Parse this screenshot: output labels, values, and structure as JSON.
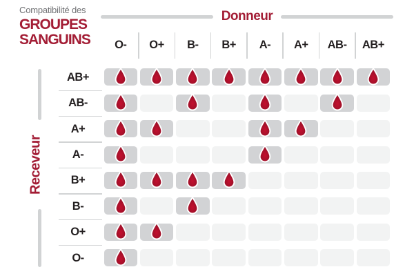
{
  "title": {
    "eyebrow": "Compatibilité des",
    "line1": "GROUPES",
    "line2": "SANGUINS"
  },
  "axes": {
    "donor_label": "Donneur",
    "receiver_label": "Receveur"
  },
  "icons": {
    "compatible_marker": "blood-drop-icon"
  },
  "colors": {
    "accent_red": "#a31d35",
    "label_dark": "#231f20",
    "subtitle_gray": "#6f7073",
    "line_gray": "#d1d3d4",
    "cell_filled": "#d2d3d5",
    "cell_empty": "#f2f3f3",
    "drop_center": "#c4102f",
    "drop_edge": "#8e1126",
    "drop_stroke": "#ffffff"
  },
  "chart_data": {
    "type": "heatmap",
    "title": "Compatibilité des GROUPES SANGUINS",
    "x_label": "Donneur",
    "y_label": "Receveur",
    "x_categories": [
      "O-",
      "O+",
      "B-",
      "B+",
      "A-",
      "A+",
      "AB-",
      "AB+"
    ],
    "y_categories": [
      "AB+",
      "AB-",
      "A+",
      "A-",
      "B+",
      "B-",
      "O+",
      "O-"
    ],
    "values": [
      [
        1,
        1,
        1,
        1,
        1,
        1,
        1,
        1
      ],
      [
        1,
        0,
        1,
        0,
        1,
        0,
        1,
        0
      ],
      [
        1,
        1,
        0,
        0,
        1,
        1,
        0,
        0
      ],
      [
        1,
        0,
        0,
        0,
        1,
        0,
        0,
        0
      ],
      [
        1,
        1,
        1,
        1,
        0,
        0,
        0,
        0
      ],
      [
        1,
        0,
        1,
        0,
        0,
        0,
        0,
        0
      ],
      [
        1,
        1,
        0,
        0,
        0,
        0,
        0,
        0
      ],
      [
        1,
        0,
        0,
        0,
        0,
        0,
        0,
        0
      ]
    ],
    "value_meaning": "1 = compatible (blood drop shown), 0 = incompatible (empty cell)",
    "legend_position": "none",
    "grid": false
  }
}
